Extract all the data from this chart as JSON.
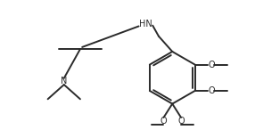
{
  "bg_color": "#ffffff",
  "line_color": "#2a2a2a",
  "text_color": "#2a2a2a",
  "line_width": 1.4,
  "font_size": 7.0,
  "figsize": [
    2.86,
    1.55
  ],
  "dpi": 100,
  "xlim": [
    0,
    10
  ],
  "ylim": [
    0,
    5.5
  ]
}
